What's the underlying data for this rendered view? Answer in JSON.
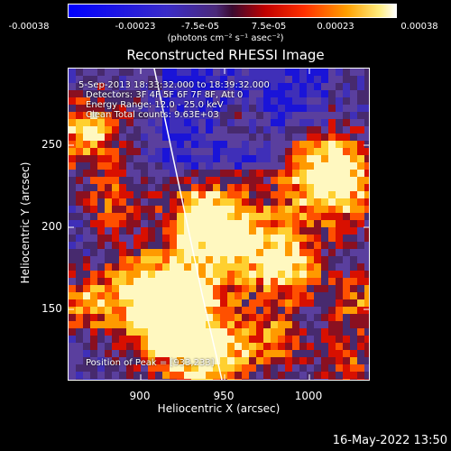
{
  "colorbar": {
    "ticks": [
      "-0.00038",
      "-0.00023",
      "-7.5e-05",
      "7.5e-05",
      "0.00023",
      "0.00038"
    ],
    "units": "(photons cm⁻² s⁻¹ asec⁻²)"
  },
  "title": "Reconstructed RHESSI Image",
  "annotations": {
    "time_range": "5-Sep-2013 18:33:32.000 to 18:39:32.000",
    "detectors": "Detectors: 3F 4F 5F 6F 7F 8F, Att 0",
    "energy_range": "Energy Range: 12.0 - 25.0 keV",
    "clean_counts": "Clean    Total counts: 9.63E+03",
    "peak": "Position of Peak = [933,233]"
  },
  "axes": {
    "xlabel": "Heliocentric X (arcsec)",
    "ylabel": "Heliocentric Y (arcsec)",
    "x_ticks": [
      "900",
      "950",
      "1000"
    ],
    "y_ticks": [
      "250",
      "200",
      "150"
    ]
  },
  "timestamp": "16-May-2022 13:50",
  "colors": {
    "background": "#000000",
    "colormap": [
      "#0000ff",
      "#5a3fa0",
      "#ff0000",
      "#ffa000",
      "#ffffff"
    ]
  }
}
